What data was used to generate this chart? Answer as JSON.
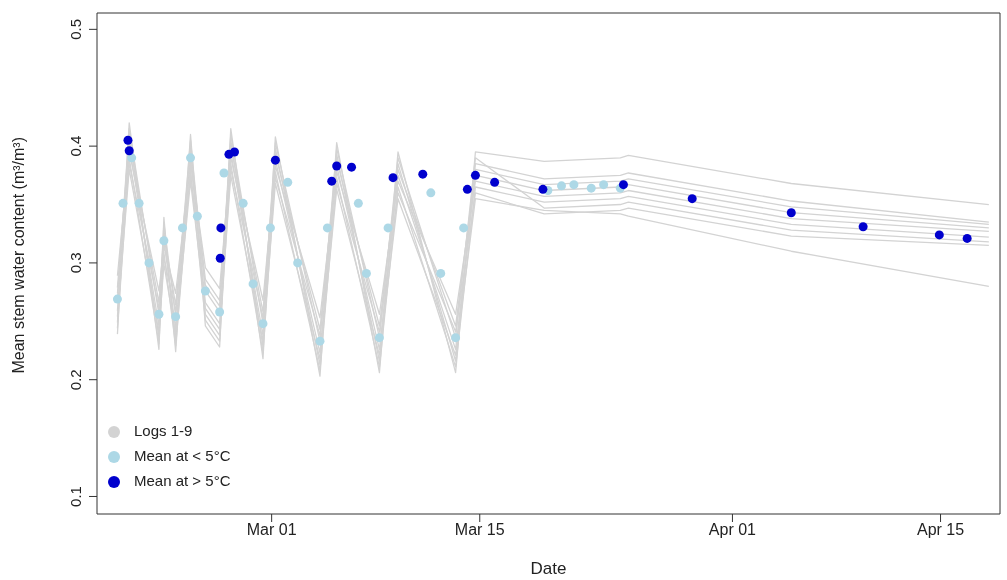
{
  "chart_data": {
    "type": "scatter",
    "xlabel": "Date",
    "ylabel": "Mean stem water content (m³/m³)",
    "xlim": [
      "--02-17T06:00",
      "--04-19"
    ],
    "xticks": [
      {
        "value": "--03-01",
        "label": "Mar 01"
      },
      {
        "value": "--03-15",
        "label": "Mar 15"
      },
      {
        "value": "--04-01",
        "label": "Apr 01"
      },
      {
        "value": "--04-15",
        "label": "Apr 15"
      }
    ],
    "ylim": [
      0.085,
      0.514
    ],
    "yticks": [
      0.1,
      0.2,
      0.3,
      0.4,
      0.5
    ],
    "legend": "bottom left",
    "series": [
      {
        "type": "line",
        "name": "Logs 1-9",
        "color": "#d3d3d3",
        "x": [
          "--02-18T15:00",
          "--02-19T10:00",
          "--02-21T10:00",
          "--02-21T18:00",
          "--02-22T13:00",
          "--02-23T13:00",
          "--02-24T13:00",
          "--02-25T12:00",
          "--02-26T06:00",
          "--02-28T10:00",
          "--03-01T06:00",
          "--03-04T06:00",
          "--03-05T09:00",
          "--03-08T06:00",
          "--03-09T12:00",
          "--03-13T09:00",
          "--03-14T17:00",
          "--03-19T08:00",
          "--03-24T11:00",
          "--03-25T00:00",
          "--04-04T23:00",
          "--04-18T06:00"
        ],
        "values": [
          0.239,
          0.42,
          0.226,
          0.339,
          0.224,
          0.41,
          0.246,
          0.228,
          0.415,
          0.218,
          0.408,
          0.203,
          0.403,
          0.206,
          0.395,
          0.206,
          0.395,
          0.387,
          0.39,
          0.392,
          0.368,
          0.35
        ]
      },
      {
        "type": "line",
        "color": "#d3d3d3",
        "x": [
          "--02-18T15:00",
          "--02-19T10:00",
          "--02-21T10:00",
          "--02-21T18:00",
          "--02-22T13:00",
          "--02-23T13:00",
          "--02-24T13:00",
          "--02-25T12:00",
          "--02-26T06:00",
          "--02-28T10:00",
          "--03-01T06:00",
          "--03-04T06:00",
          "--03-05T09:00",
          "--03-08T06:00",
          "--03-09T12:00",
          "--03-13T09:00",
          "--03-14T17:00",
          "--03-19T08:00",
          "--03-24T11:00",
          "--03-25T00:00",
          "--04-04T23:00",
          "--04-18T06:00"
        ],
        "values": [
          0.249,
          0.41,
          0.236,
          0.329,
          0.234,
          0.4,
          0.256,
          0.238,
          0.405,
          0.228,
          0.398,
          0.213,
          0.393,
          0.216,
          0.385,
          0.216,
          0.385,
          0.372,
          0.375,
          0.377,
          0.353,
          0.335
        ]
      },
      {
        "type": "line",
        "color": "#d3d3d3",
        "x": [
          "--02-18T15:00",
          "--02-19T10:00",
          "--02-21T10:00",
          "--02-21T18:00",
          "--02-22T13:00",
          "--02-23T13:00",
          "--02-24T13:00",
          "--02-25T12:00",
          "--02-26T06:00",
          "--02-28T10:00",
          "--03-01T06:00",
          "--03-04T06:00",
          "--03-05T09:00",
          "--03-08T06:00",
          "--03-09T12:00",
          "--03-13T09:00",
          "--03-14T17:00",
          "--03-19T08:00",
          "--03-24T11:00",
          "--03-25T00:00",
          "--04-04T23:00",
          "--04-18T06:00"
        ],
        "values": [
          0.279,
          0.405,
          0.266,
          0.324,
          0.264,
          0.395,
          0.286,
          0.268,
          0.4,
          0.258,
          0.393,
          0.243,
          0.388,
          0.246,
          0.38,
          0.246,
          0.38,
          0.367,
          0.37,
          0.372,
          0.348,
          0.333
        ]
      },
      {
        "type": "line",
        "color": "#d3d3d3",
        "x": [
          "--02-18T15:00",
          "--02-19T10:00",
          "--02-21T10:00",
          "--02-21T18:00",
          "--02-22T13:00",
          "--02-23T13:00",
          "--02-24T13:00",
          "--02-25T12:00",
          "--02-26T06:00",
          "--02-28T10:00",
          "--03-01T06:00",
          "--03-04T06:00",
          "--03-05T09:00",
          "--03-08T06:00",
          "--03-09T12:00",
          "--03-13T09:00",
          "--03-14T17:00",
          "--03-19T08:00",
          "--03-24T11:00",
          "--03-25T00:00",
          "--04-04T23:00",
          "--04-18T06:00"
        ],
        "values": [
          0.259,
          0.4,
          0.246,
          0.319,
          0.244,
          0.39,
          0.266,
          0.248,
          0.395,
          0.238,
          0.388,
          0.223,
          0.383,
          0.226,
          0.375,
          0.226,
          0.375,
          0.362,
          0.365,
          0.367,
          0.343,
          0.33
        ]
      },
      {
        "type": "line",
        "color": "#d3d3d3",
        "x": [
          "--02-18T15:00",
          "--02-19T10:00",
          "--02-21T10:00",
          "--02-21T18:00",
          "--02-22T13:00",
          "--02-23T13:00",
          "--02-24T13:00",
          "--02-25T12:00",
          "--02-26T06:00",
          "--02-28T10:00",
          "--03-01T06:00",
          "--03-04T06:00",
          "--03-05T09:00",
          "--03-08T06:00",
          "--03-09T12:00",
          "--03-13T09:00",
          "--03-14T17:00",
          "--03-19T08:00",
          "--03-24T11:00",
          "--03-25T00:00",
          "--04-04T23:00",
          "--04-18T06:00"
        ],
        "values": [
          0.289,
          0.395,
          0.276,
          0.314,
          0.274,
          0.385,
          0.296,
          0.278,
          0.39,
          0.268,
          0.383,
          0.253,
          0.378,
          0.256,
          0.37,
          0.256,
          0.37,
          0.357,
          0.36,
          0.362,
          0.338,
          0.327
        ]
      },
      {
        "type": "line",
        "color": "#d3d3d3",
        "x": [
          "--02-18T15:00",
          "--02-19T10:00",
          "--02-21T10:00",
          "--02-21T18:00",
          "--02-22T13:00",
          "--02-23T13:00",
          "--02-24T13:00",
          "--02-25T12:00",
          "--02-26T06:00",
          "--02-28T10:00",
          "--03-01T06:00",
          "--03-04T06:00",
          "--03-05T09:00",
          "--03-08T06:00",
          "--03-09T12:00",
          "--03-13T09:00",
          "--03-14T17:00",
          "--03-19T08:00",
          "--03-24T11:00",
          "--03-25T00:00",
          "--04-04T23:00",
          "--04-18T06:00"
        ],
        "values": [
          0.244,
          0.39,
          0.231,
          0.309,
          0.229,
          0.38,
          0.251,
          0.233,
          0.385,
          0.223,
          0.378,
          0.208,
          0.373,
          0.211,
          0.365,
          0.211,
          0.365,
          0.352,
          0.355,
          0.357,
          0.333,
          0.322
        ]
      },
      {
        "type": "line",
        "color": "#d3d3d3",
        "x": [
          "--02-18T15:00",
          "--02-19T10:00",
          "--02-21T10:00",
          "--02-21T18:00",
          "--02-22T13:00",
          "--02-23T13:00",
          "--02-24T13:00",
          "--02-25T12:00",
          "--02-26T06:00",
          "--02-28T10:00",
          "--03-01T06:00",
          "--03-04T06:00",
          "--03-05T09:00",
          "--03-08T06:00",
          "--03-09T12:00",
          "--03-13T09:00",
          "--03-14T17:00",
          "--03-19T08:00",
          "--03-24T11:00",
          "--03-25T00:00",
          "--04-04T23:00",
          "--04-18T06:00"
        ],
        "values": [
          0.269,
          0.415,
          0.256,
          0.334,
          0.254,
          0.405,
          0.276,
          0.258,
          0.41,
          0.248,
          0.403,
          0.233,
          0.398,
          0.236,
          0.39,
          0.236,
          0.39,
          0.347,
          0.35,
          0.352,
          0.328,
          0.318
        ]
      },
      {
        "type": "line",
        "color": "#d3d3d3",
        "x": [
          "--02-18T15:00",
          "--02-19T10:00",
          "--02-21T10:00",
          "--02-21T18:00",
          "--02-22T13:00",
          "--02-23T13:00",
          "--02-24T13:00",
          "--02-25T12:00",
          "--02-26T06:00",
          "--02-28T10:00",
          "--03-01T06:00",
          "--03-04T06:00",
          "--03-05T09:00",
          "--03-08T06:00",
          "--03-09T12:00",
          "--03-13T09:00",
          "--03-14T17:00",
          "--03-19T08:00",
          "--03-24T11:00",
          "--03-25T00:00",
          "--04-04T23:00",
          "--04-18T06:00"
        ],
        "values": [
          0.274,
          0.385,
          0.261,
          0.304,
          0.259,
          0.375,
          0.281,
          0.263,
          0.38,
          0.253,
          0.373,
          0.238,
          0.368,
          0.241,
          0.36,
          0.241,
          0.36,
          0.342,
          0.345,
          0.347,
          0.323,
          0.315
        ]
      },
      {
        "type": "line",
        "color": "#d3d3d3",
        "x": [
          "--02-18T15:00",
          "--02-19T10:00",
          "--02-21T10:00",
          "--02-21T18:00",
          "--02-22T13:00",
          "--02-23T13:00",
          "--02-24T13:00",
          "--02-25T12:00",
          "--02-26T06:00",
          "--02-28T10:00",
          "--03-01T06:00",
          "--03-04T06:00",
          "--03-05T09:00",
          "--03-08T06:00",
          "--03-09T12:00",
          "--03-13T09:00",
          "--03-14T17:00",
          "--03-19T08:00",
          "--03-24T11:00",
          "--03-25T00:00",
          "--04-04T23:00",
          "--04-18T06:00"
        ],
        "values": [
          0.254,
          0.38,
          0.241,
          0.299,
          0.239,
          0.37,
          0.261,
          0.243,
          0.375,
          0.233,
          0.368,
          0.218,
          0.363,
          0.221,
          0.355,
          0.221,
          0.355,
          0.345,
          0.342,
          0.34,
          0.31,
          0.28
        ]
      },
      {
        "marker": "circle",
        "name": "Mean at < 5°C",
        "color": "#add8e6",
        "x": [
          "--02-18T15:00",
          "--02-19T00:00",
          "--02-19T14:00",
          "--02-20T02:00",
          "--02-20T18:00",
          "--02-21T10:00",
          "--02-21T18:00",
          "--02-22T13:00",
          "--02-23T00:00",
          "--02-23T13:00",
          "--02-24T00:00",
          "--02-24T13:00",
          "--02-25T12:00",
          "--02-25T19:00",
          "--02-27T02:00",
          "--02-27T18:00",
          "--02-28T10:00",
          "--02-28T22:00",
          "--03-02T02:00",
          "--03-02T18:00",
          "--03-04T06:00",
          "--03-04T18:00",
          "--03-06T20:00",
          "--03-07T09:00",
          "--03-08T06:00",
          "--03-08T20:00",
          "--03-11T17:00",
          "--03-12T09:00",
          "--03-13T09:00",
          "--03-13T22:00",
          "--03-19T14:00",
          "--03-20T12:00",
          "--03-21T08:00",
          "--03-22T12:00",
          "--03-23T08:00",
          "--03-24T11:00"
        ],
        "values": [
          0.269,
          0.351,
          0.39,
          0.351,
          0.3,
          0.256,
          0.319,
          0.254,
          0.33,
          0.39,
          0.34,
          0.276,
          0.258,
          0.377,
          0.351,
          0.282,
          0.248,
          0.33,
          0.369,
          0.3,
          0.233,
          0.33,
          0.351,
          0.291,
          0.236,
          0.33,
          0.36,
          0.291,
          0.236,
          0.33,
          0.362,
          0.366,
          0.367,
          0.364,
          0.367,
          0.364
        ]
      },
      {
        "marker": "circle",
        "name": "Mean at > 5°C",
        "color": "#0000cd",
        "x": [
          "--02-19T08:00",
          "--02-19T10:00",
          "--02-25T13:00",
          "--02-25T14:00",
          "--02-26T03:00",
          "--02-26T12:00",
          "--03-01T06:00",
          "--03-05T01:00",
          "--03-05T09:00",
          "--03-06T09:00",
          "--03-09T04:00",
          "--03-11T04:00",
          "--03-14T04:00",
          "--03-14T17:00",
          "--03-16T00:00",
          "--03-19T06:00",
          "--03-24T16:00",
          "--03-29T07:00",
          "--04-04T23:00",
          "--04-09T19:00",
          "--04-14T22:00",
          "--04-16T19:00"
        ],
        "values": [
          0.405,
          0.396,
          0.304,
          0.33,
          0.393,
          0.395,
          0.388,
          0.37,
          0.383,
          0.382,
          0.373,
          0.376,
          0.363,
          0.375,
          0.369,
          0.363,
          0.367,
          0.355,
          0.343,
          0.331,
          0.324,
          0.321
        ]
      }
    ]
  }
}
